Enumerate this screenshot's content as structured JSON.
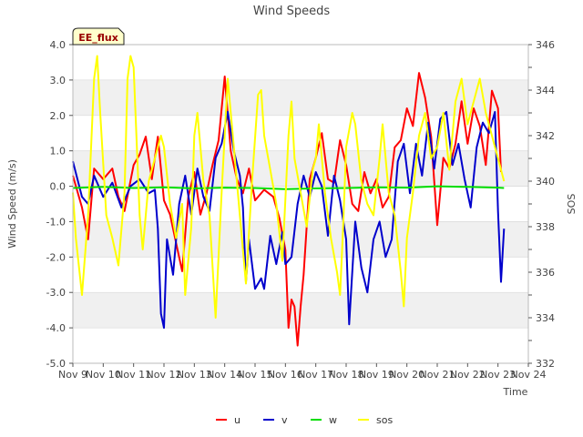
{
  "chart_data": {
    "type": "line",
    "title": "Wind Speeds",
    "xlabel": "Time",
    "ylabel": "Wind Speed (m/s)",
    "y2label": "SOS",
    "ylim": [
      -5.0,
      4.0
    ],
    "y2lim": [
      332,
      346
    ],
    "xlim": [
      9,
      24
    ],
    "x_ticks": [
      9,
      10,
      11,
      12,
      13,
      14,
      15,
      16,
      17,
      18,
      19,
      20,
      21,
      22,
      23,
      24
    ],
    "x_tick_labels": [
      "Nov 9",
      "Nov 10",
      "Nov 11",
      "Nov 12",
      "Nov 13",
      "Nov 14",
      "Nov 15",
      "Nov 16",
      "Nov 17",
      "Nov 18",
      "Nov 19",
      "Nov 20",
      "Nov 21",
      "Nov 22",
      "Nov 23",
      "Nov 24"
    ],
    "y_ticks": [
      -5,
      -4,
      -3,
      -2,
      -1,
      0,
      1,
      2,
      3,
      4
    ],
    "y_tick_labels": [
      "-5.0",
      "-4.0",
      "-3.0",
      "-2.0",
      "-1.0",
      "0.0",
      "1.0",
      "2.0",
      "3.0",
      "4.0"
    ],
    "y2_ticks": [
      332,
      334,
      336,
      338,
      340,
      342,
      344,
      346
    ],
    "y2_tick_labels": [
      "332",
      "334",
      "336",
      "338",
      "340",
      "342",
      "344",
      "346"
    ],
    "annotation": "EE_flux",
    "grid": "horizontal bands",
    "legend_position": "bottom-center",
    "series": [
      {
        "name": "u",
        "axis": "left",
        "color": "#ff0000",
        "points": [
          [
            9.0,
            0.3
          ],
          [
            9.3,
            -0.6
          ],
          [
            9.5,
            -1.5
          ],
          [
            9.7,
            0.5
          ],
          [
            10.0,
            0.2
          ],
          [
            10.3,
            0.5
          ],
          [
            10.5,
            -0.3
          ],
          [
            10.7,
            -0.7
          ],
          [
            11.0,
            0.6
          ],
          [
            11.2,
            0.9
          ],
          [
            11.4,
            1.4
          ],
          [
            11.6,
            0.2
          ],
          [
            11.8,
            1.4
          ],
          [
            12.0,
            -0.4
          ],
          [
            12.2,
            -0.8
          ],
          [
            12.4,
            -1.6
          ],
          [
            12.6,
            -2.4
          ],
          [
            12.8,
            -0.3
          ],
          [
            13.0,
            0.4
          ],
          [
            13.2,
            -0.8
          ],
          [
            13.4,
            -0.2
          ],
          [
            13.6,
            0.6
          ],
          [
            13.8,
            1.3
          ],
          [
            14.0,
            3.1
          ],
          [
            14.2,
            1.0
          ],
          [
            14.4,
            0.2
          ],
          [
            14.6,
            -0.2
          ],
          [
            14.8,
            0.5
          ],
          [
            15.0,
            -0.4
          ],
          [
            15.3,
            -0.1
          ],
          [
            15.6,
            -0.3
          ],
          [
            15.8,
            -0.9
          ],
          [
            16.0,
            -1.8
          ],
          [
            16.1,
            -4.0
          ],
          [
            16.2,
            -3.2
          ],
          [
            16.3,
            -3.4
          ],
          [
            16.4,
            -4.5
          ],
          [
            16.5,
            -3.4
          ],
          [
            16.6,
            -2.5
          ],
          [
            16.8,
            0.2
          ],
          [
            17.0,
            0.8
          ],
          [
            17.2,
            1.5
          ],
          [
            17.4,
            0.2
          ],
          [
            17.6,
            0.1
          ],
          [
            17.8,
            1.3
          ],
          [
            18.0,
            0.6
          ],
          [
            18.2,
            -0.5
          ],
          [
            18.4,
            -0.7
          ],
          [
            18.6,
            0.4
          ],
          [
            18.8,
            -0.2
          ],
          [
            19.0,
            0.2
          ],
          [
            19.2,
            -0.6
          ],
          [
            19.4,
            -0.3
          ],
          [
            19.6,
            1.1
          ],
          [
            19.8,
            1.3
          ],
          [
            20.0,
            2.2
          ],
          [
            20.2,
            1.7
          ],
          [
            20.4,
            3.2
          ],
          [
            20.6,
            2.5
          ],
          [
            20.8,
            1.4
          ],
          [
            21.0,
            -1.1
          ],
          [
            21.2,
            0.8
          ],
          [
            21.4,
            0.5
          ],
          [
            21.6,
            1.2
          ],
          [
            21.8,
            2.4
          ],
          [
            22.0,
            1.2
          ],
          [
            22.2,
            2.2
          ],
          [
            22.4,
            1.7
          ],
          [
            22.6,
            0.6
          ],
          [
            22.8,
            2.7
          ],
          [
            23.0,
            2.2
          ],
          [
            23.1,
            0.4
          ]
        ]
      },
      {
        "name": "v",
        "axis": "left",
        "color": "#0000cc",
        "points": [
          [
            9.0,
            0.7
          ],
          [
            9.3,
            -0.3
          ],
          [
            9.5,
            -0.5
          ],
          [
            9.7,
            0.3
          ],
          [
            10.0,
            -0.3
          ],
          [
            10.3,
            0.1
          ],
          [
            10.6,
            -0.6
          ],
          [
            10.9,
            0.0
          ],
          [
            11.2,
            0.2
          ],
          [
            11.5,
            -0.2
          ],
          [
            11.7,
            -0.1
          ],
          [
            11.8,
            -1.2
          ],
          [
            11.9,
            -3.6
          ],
          [
            12.0,
            -4.0
          ],
          [
            12.1,
            -1.5
          ],
          [
            12.3,
            -2.5
          ],
          [
            12.5,
            -0.5
          ],
          [
            12.7,
            0.3
          ],
          [
            12.9,
            -0.8
          ],
          [
            13.1,
            0.5
          ],
          [
            13.3,
            -0.3
          ],
          [
            13.5,
            -0.7
          ],
          [
            13.7,
            0.8
          ],
          [
            13.9,
            1.2
          ],
          [
            14.1,
            2.1
          ],
          [
            14.3,
            1.0
          ],
          [
            14.5,
            0.3
          ],
          [
            14.6,
            -0.6
          ],
          [
            14.7,
            -2.7
          ],
          [
            14.8,
            -1.5
          ],
          [
            15.0,
            -2.9
          ],
          [
            15.2,
            -2.6
          ],
          [
            15.3,
            -2.9
          ],
          [
            15.5,
            -1.4
          ],
          [
            15.7,
            -2.2
          ],
          [
            15.9,
            -1.3
          ],
          [
            16.0,
            -2.2
          ],
          [
            16.2,
            -2.0
          ],
          [
            16.4,
            -0.5
          ],
          [
            16.6,
            0.3
          ],
          [
            16.8,
            -0.3
          ],
          [
            17.0,
            0.4
          ],
          [
            17.2,
            0.0
          ],
          [
            17.4,
            -1.4
          ],
          [
            17.6,
            0.3
          ],
          [
            17.8,
            -0.4
          ],
          [
            18.0,
            -1.5
          ],
          [
            18.1,
            -3.9
          ],
          [
            18.3,
            -1.0
          ],
          [
            18.5,
            -2.3
          ],
          [
            18.7,
            -3.0
          ],
          [
            18.9,
            -1.5
          ],
          [
            19.1,
            -1.0
          ],
          [
            19.3,
            -2.0
          ],
          [
            19.5,
            -1.5
          ],
          [
            19.7,
            0.7
          ],
          [
            19.9,
            1.2
          ],
          [
            20.1,
            -0.2
          ],
          [
            20.3,
            1.2
          ],
          [
            20.5,
            0.3
          ],
          [
            20.7,
            1.8
          ],
          [
            20.9,
            0.5
          ],
          [
            21.1,
            1.9
          ],
          [
            21.3,
            2.1
          ],
          [
            21.5,
            0.6
          ],
          [
            21.7,
            1.2
          ],
          [
            21.9,
            0.2
          ],
          [
            22.1,
            -0.6
          ],
          [
            22.3,
            1.1
          ],
          [
            22.5,
            1.8
          ],
          [
            22.7,
            1.5
          ],
          [
            22.9,
            2.1
          ],
          [
            23.0,
            -0.7
          ],
          [
            23.1,
            -2.7
          ],
          [
            23.2,
            -1.2
          ]
        ]
      },
      {
        "name": "w",
        "axis": "left",
        "color": "#00dd00",
        "points": [
          [
            9.0,
            -0.05
          ],
          [
            10.0,
            -0.02
          ],
          [
            11.0,
            -0.05
          ],
          [
            12.0,
            -0.03
          ],
          [
            13.0,
            -0.06
          ],
          [
            14.0,
            -0.04
          ],
          [
            15.0,
            -0.05
          ],
          [
            16.0,
            -0.08
          ],
          [
            17.0,
            -0.06
          ],
          [
            18.0,
            -0.05
          ],
          [
            19.0,
            -0.03
          ],
          [
            20.0,
            -0.04
          ],
          [
            21.0,
            0.0
          ],
          [
            22.0,
            -0.02
          ],
          [
            23.0,
            -0.04
          ],
          [
            23.2,
            -0.05
          ]
        ]
      },
      {
        "name": "sos",
        "axis": "right",
        "color": "#ffff00",
        "points": [
          [
            9.0,
            339.5
          ],
          [
            9.1,
            337.5
          ],
          [
            9.3,
            335.0
          ],
          [
            9.5,
            338.5
          ],
          [
            9.7,
            344.5
          ],
          [
            9.8,
            345.5
          ],
          [
            9.9,
            343.0
          ],
          [
            10.1,
            338.5
          ],
          [
            10.3,
            337.5
          ],
          [
            10.5,
            336.3
          ],
          [
            10.7,
            339.5
          ],
          [
            10.8,
            344.5
          ],
          [
            10.9,
            345.5
          ],
          [
            11.0,
            345.0
          ],
          [
            11.2,
            338.5
          ],
          [
            11.3,
            337.0
          ],
          [
            11.5,
            340.0
          ],
          [
            11.7,
            341.0
          ],
          [
            11.9,
            342.0
          ],
          [
            12.0,
            341.5
          ],
          [
            12.2,
            339.0
          ],
          [
            12.4,
            337.5
          ],
          [
            12.6,
            339.0
          ],
          [
            12.7,
            335.0
          ],
          [
            12.9,
            338.0
          ],
          [
            13.0,
            342.0
          ],
          [
            13.1,
            343.0
          ],
          [
            13.3,
            340.0
          ],
          [
            13.5,
            338.5
          ],
          [
            13.7,
            334.0
          ],
          [
            13.9,
            339.5
          ],
          [
            14.1,
            344.5
          ],
          [
            14.3,
            341.5
          ],
          [
            14.5,
            338.5
          ],
          [
            14.7,
            335.5
          ],
          [
            14.9,
            340.0
          ],
          [
            15.1,
            343.8
          ],
          [
            15.2,
            344.0
          ],
          [
            15.3,
            342.0
          ],
          [
            15.5,
            340.5
          ],
          [
            15.7,
            339.0
          ],
          [
            15.9,
            336.5
          ],
          [
            16.1,
            342.0
          ],
          [
            16.2,
            343.5
          ],
          [
            16.3,
            341.0
          ],
          [
            16.5,
            339.5
          ],
          [
            16.7,
            338.0
          ],
          [
            16.9,
            340.5
          ],
          [
            17.0,
            341.0
          ],
          [
            17.1,
            342.5
          ],
          [
            17.3,
            339.5
          ],
          [
            17.5,
            337.5
          ],
          [
            17.7,
            336.0
          ],
          [
            17.8,
            335.0
          ],
          [
            17.9,
            338.0
          ],
          [
            18.0,
            341.5
          ],
          [
            18.2,
            343.0
          ],
          [
            18.3,
            342.5
          ],
          [
            18.5,
            340.0
          ],
          [
            18.7,
            339.0
          ],
          [
            18.9,
            338.5
          ],
          [
            19.1,
            341.0
          ],
          [
            19.2,
            342.5
          ],
          [
            19.4,
            339.5
          ],
          [
            19.6,
            338.5
          ],
          [
            19.8,
            336.0
          ],
          [
            19.9,
            334.5
          ],
          [
            20.0,
            337.5
          ],
          [
            20.2,
            339.5
          ],
          [
            20.4,
            342.0
          ],
          [
            20.6,
            343.0
          ],
          [
            20.8,
            341.0
          ],
          [
            21.0,
            341.5
          ],
          [
            21.2,
            343.0
          ],
          [
            21.4,
            340.5
          ],
          [
            21.6,
            343.5
          ],
          [
            21.8,
            344.5
          ],
          [
            22.0,
            342.5
          ],
          [
            22.2,
            343.5
          ],
          [
            22.4,
            344.5
          ],
          [
            22.6,
            343.0
          ],
          [
            22.8,
            342.0
          ],
          [
            23.0,
            341.0
          ],
          [
            23.2,
            340.0
          ]
        ]
      }
    ]
  }
}
